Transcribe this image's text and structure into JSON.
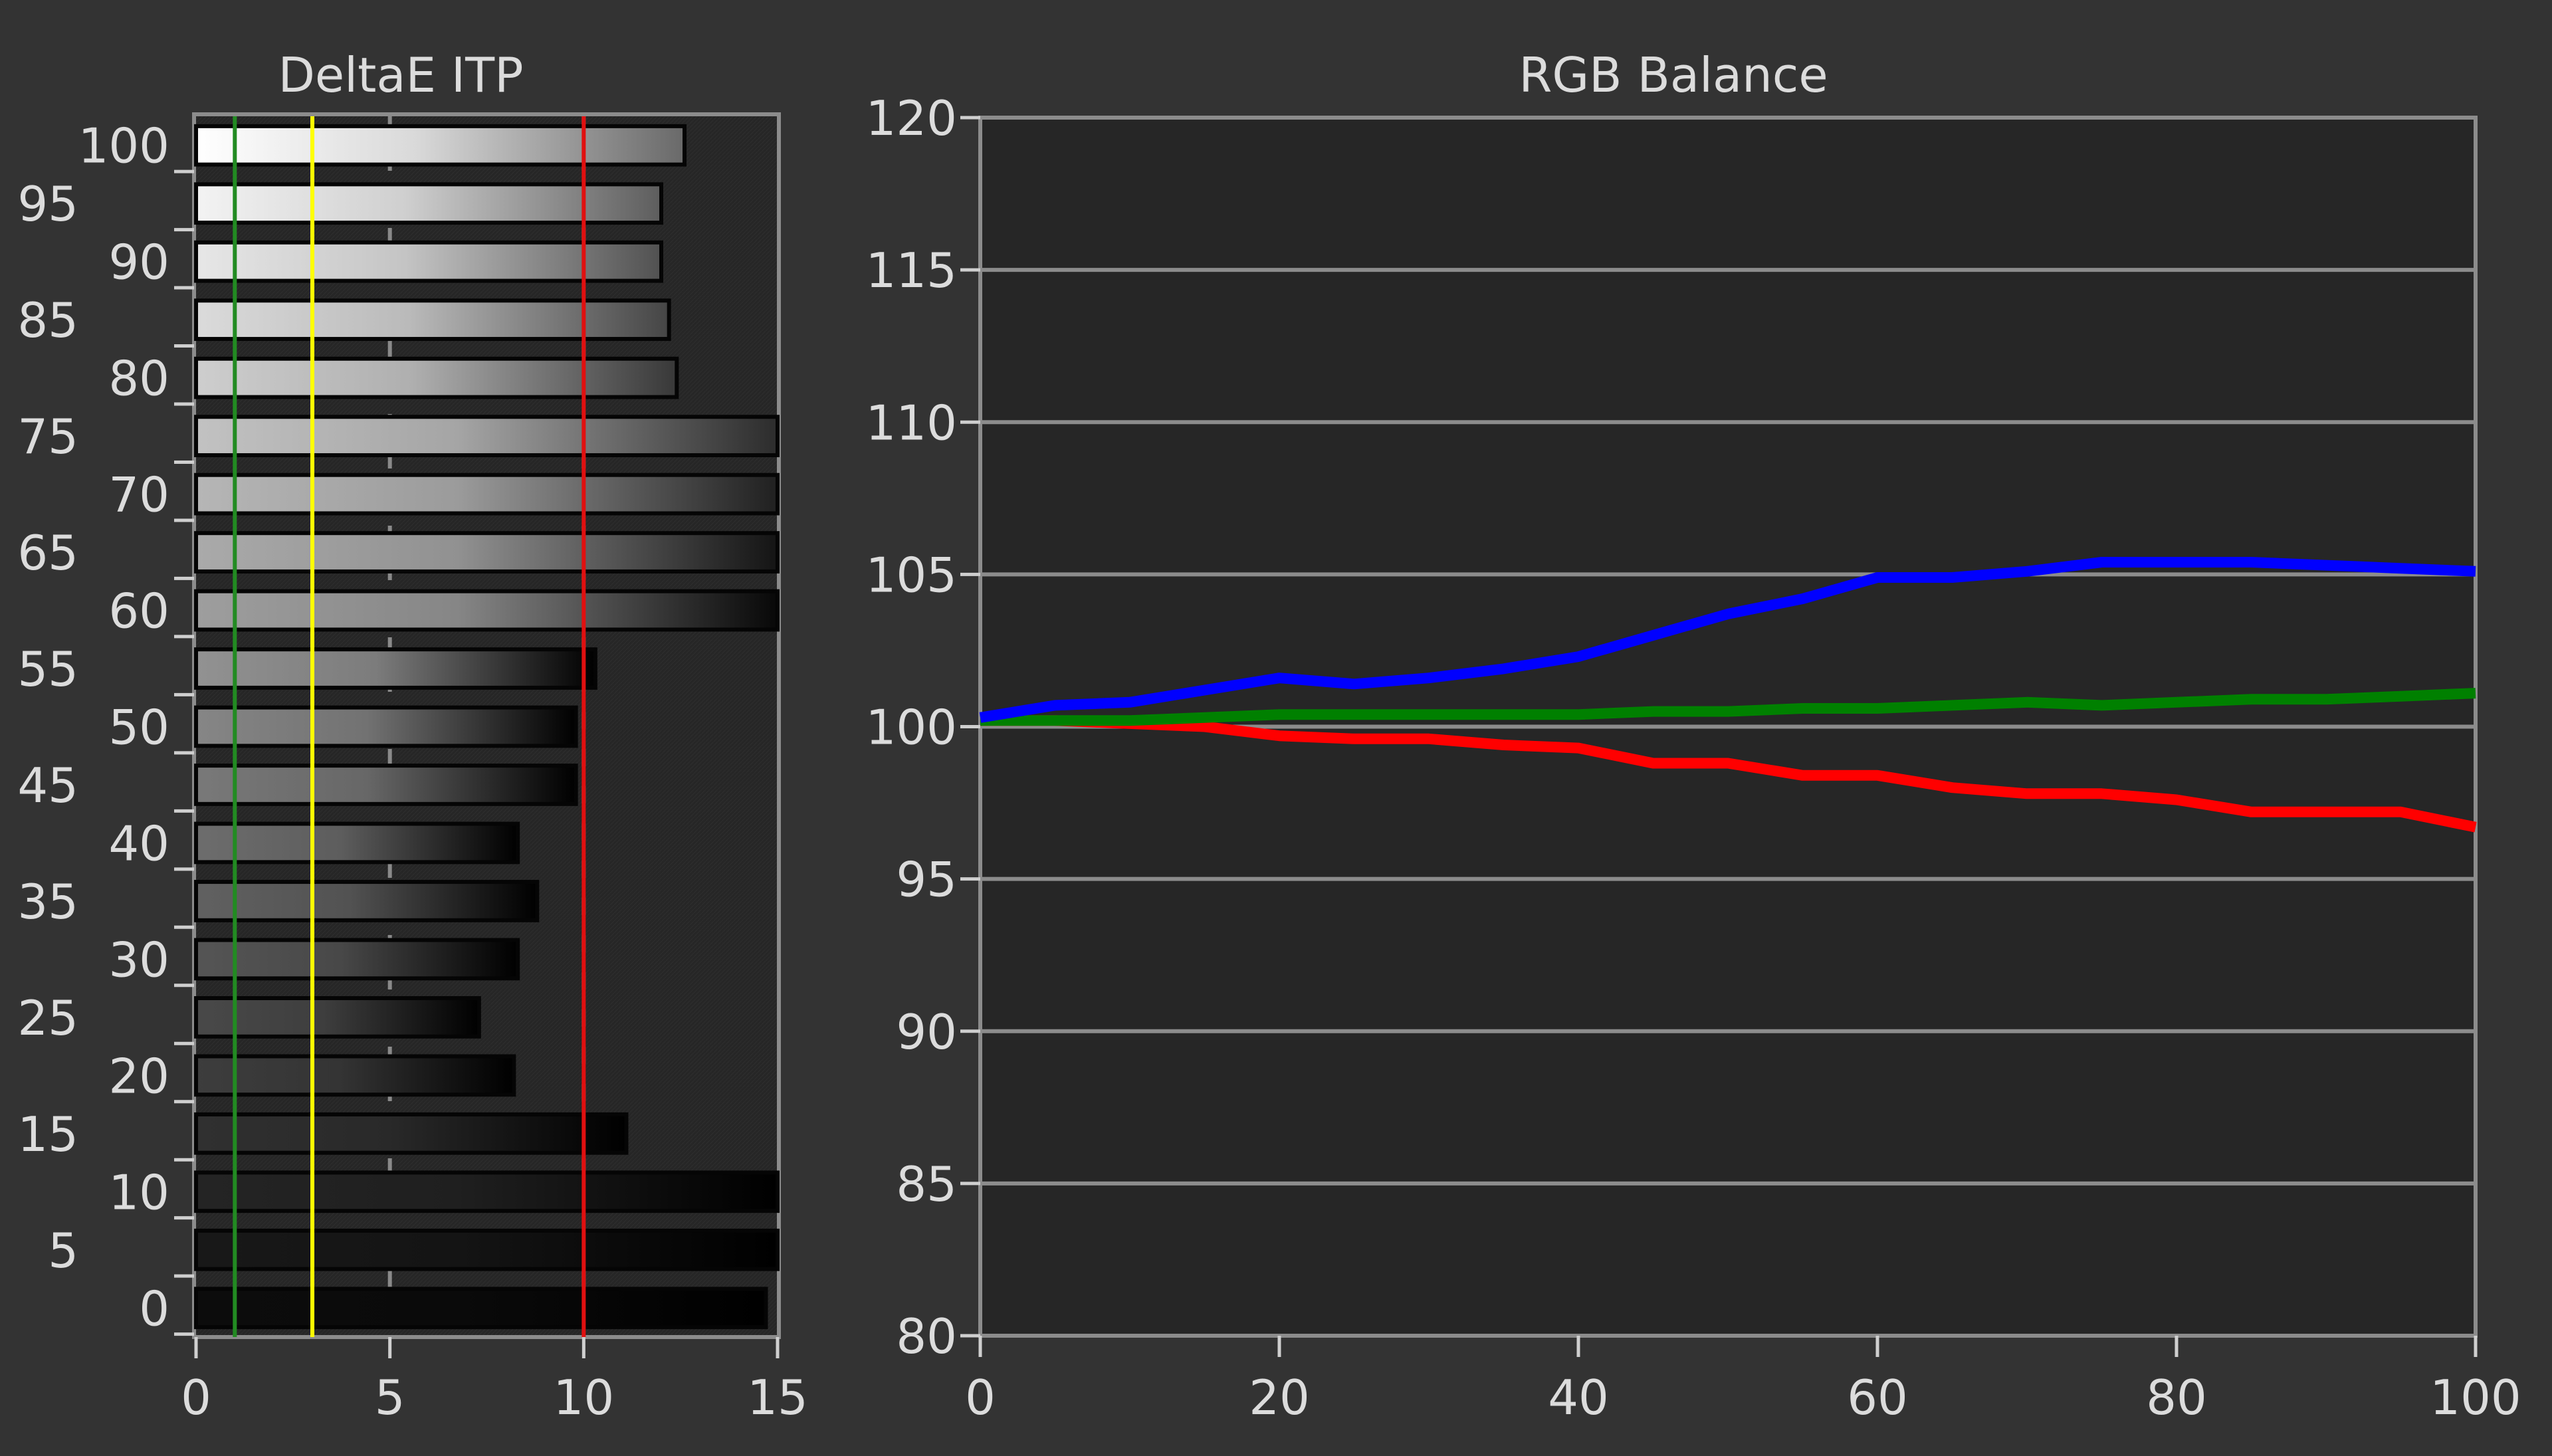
{
  "chart_data": [
    {
      "type": "bar",
      "orientation": "horizontal",
      "title": "DeltaE ITP",
      "xlabel": "",
      "ylabel": "",
      "xlim": [
        0,
        15
      ],
      "x_ticks": [
        "0",
        "5",
        "10",
        "15"
      ],
      "categories": [
        "0",
        "5",
        "10",
        "15",
        "20",
        "25",
        "30",
        "35",
        "40",
        "45",
        "50",
        "55",
        "60",
        "65",
        "70",
        "75",
        "80",
        "85",
        "90",
        "95",
        "100"
      ],
      "values": [
        14.7,
        15,
        15,
        11.1,
        8.2,
        7.3,
        8.3,
        8.8,
        8.3,
        9.8,
        9.8,
        10.3,
        15,
        15,
        15,
        15,
        12.4,
        12.2,
        12.0,
        12.0,
        12.6
      ],
      "clipped_at_max": true,
      "reference_lines": [
        {
          "x": 1,
          "color": "#228b22"
        },
        {
          "x": 3,
          "color": "#ffff00"
        },
        {
          "x": 10,
          "color": "#e01010"
        }
      ],
      "grid": "vertical dashed",
      "bar_fill": "grayscale gradient matching stimulus level"
    },
    {
      "type": "line",
      "title": "RGB Balance",
      "xlabel": "",
      "ylabel": "",
      "xlim": [
        0,
        100
      ],
      "ylim": [
        80,
        120
      ],
      "x_ticks": [
        "0",
        "20",
        "40",
        "60",
        "80",
        "100"
      ],
      "y_ticks": [
        "80",
        "85",
        "90",
        "95",
        "100",
        "105",
        "110",
        "115",
        "120"
      ],
      "grid": "horizontal",
      "x": [
        0,
        5,
        10,
        15,
        20,
        25,
        30,
        35,
        40,
        45,
        50,
        55,
        60,
        65,
        70,
        75,
        80,
        85,
        90,
        95,
        100
      ],
      "series": [
        {
          "color": "#ff0000",
          "values": [
            100.2,
            100.2,
            100.1,
            100.0,
            99.7,
            99.6,
            99.6,
            99.4,
            99.3,
            98.8,
            98.8,
            98.4,
            98.4,
            98.0,
            97.8,
            97.8,
            97.6,
            97.2,
            97.2,
            97.2,
            96.7
          ]
        },
        {
          "color": "#008000",
          "values": [
            100.2,
            100.2,
            100.2,
            100.3,
            100.4,
            100.4,
            100.4,
            100.4,
            100.4,
            100.5,
            100.5,
            100.6,
            100.6,
            100.7,
            100.8,
            100.7,
            100.8,
            100.9,
            100.9,
            101.0,
            101.1
          ]
        },
        {
          "color": "#0000ff",
          "values": [
            100.3,
            100.7,
            100.8,
            101.2,
            101.6,
            101.4,
            101.6,
            101.9,
            102.3,
            103.0,
            103.7,
            104.2,
            104.9,
            104.9,
            105.1,
            105.4,
            105.4,
            105.4,
            105.3,
            105.2,
            105.1
          ]
        }
      ]
    }
  ]
}
